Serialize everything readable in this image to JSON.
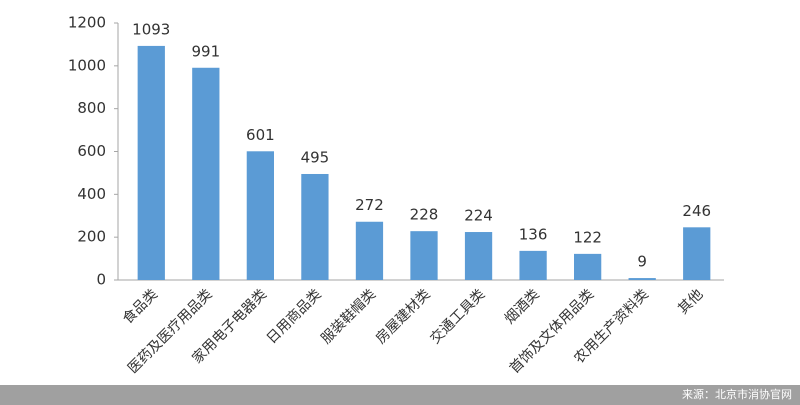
{
  "chart_data": {
    "type": "bar",
    "categories": [
      "食品类",
      "医药及医疗用品类",
      "家用电子电器类",
      "日用商品类",
      "服装鞋帽类",
      "房屋建材类",
      "交通工具类",
      "烟酒类",
      "首饰及文体用品类",
      "农用生产资料类",
      "其他"
    ],
    "values": [
      1093,
      991,
      601,
      495,
      272,
      228,
      224,
      136,
      122,
      9,
      246
    ],
    "color": "#5b9bd5",
    "ylim": [
      0,
      1200
    ],
    "yticks": [
      0,
      200,
      400,
      600,
      800,
      1000,
      1200
    ],
    "grid": false,
    "source": "来源：北京市消协官网"
  }
}
